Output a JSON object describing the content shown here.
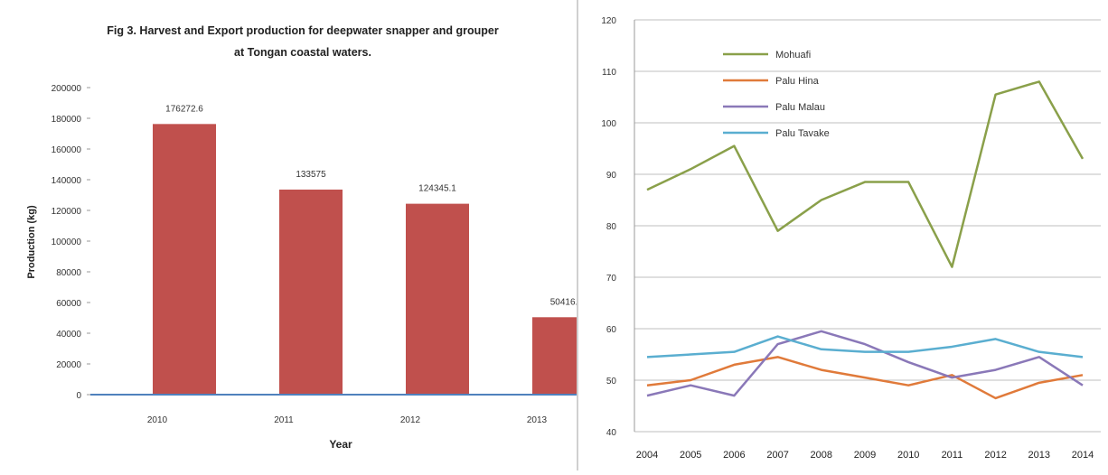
{
  "chart_data": [
    {
      "type": "bar",
      "title": "Fig 3.  Harvest and Export production for deepwater snapper and grouper",
      "subtitle": "at Tongan coastal waters.",
      "xlabel": "Year",
      "ylabel": "Production (kg)",
      "categories": [
        "2010",
        "2011",
        "2012",
        "2013"
      ],
      "values": [
        176272.6,
        133575,
        124345.1,
        50416
      ],
      "data_labels": [
        "176272.6",
        "133575",
        "124345.1",
        "50416."
      ],
      "ylim": [
        0,
        200000
      ],
      "yticks": [
        0,
        20000,
        40000,
        60000,
        80000,
        100000,
        120000,
        140000,
        160000,
        180000,
        200000
      ],
      "ytick_labels": [
        "0",
        "20000",
        "40000",
        "60000",
        "80000",
        "100000",
        "120000",
        "140000",
        "160000",
        "180000",
        "200000"
      ],
      "grid": false,
      "colors": {
        "bar": "#c0504d",
        "axis": "#4f81bd"
      }
    },
    {
      "type": "line",
      "x": [
        "2004",
        "2005",
        "2006",
        "2007",
        "2008",
        "2009",
        "2010",
        "2011",
        "2012",
        "2013",
        "2014"
      ],
      "ylim": [
        40,
        120
      ],
      "yticks": [
        40,
        50,
        60,
        70,
        80,
        90,
        100,
        110,
        120
      ],
      "ytick_labels": [
        "40",
        "50",
        "60",
        "70",
        "80",
        "90",
        "100",
        "110",
        "120"
      ],
      "grid": true,
      "legend": "top-left",
      "series": [
        {
          "name": "Mohuafi",
          "color": "#8aa04a",
          "values": [
            87,
            91,
            95.5,
            79,
            85,
            88.5,
            88.5,
            72,
            105.5,
            108,
            93
          ]
        },
        {
          "name": "Palu Hina",
          "color": "#e07a3a",
          "values": [
            49,
            50,
            53,
            54.5,
            52,
            50.5,
            49,
            51,
            46.5,
            49.5,
            51
          ]
        },
        {
          "name": "Palu Malau",
          "color": "#8a78b8",
          "values": [
            47,
            49,
            47,
            57,
            59.5,
            57,
            53.5,
            50.5,
            52,
            54.5,
            49
          ]
        },
        {
          "name": "Palu Tavake",
          "color": "#5aaed0",
          "values": [
            54.5,
            55,
            55.5,
            58.5,
            56,
            55.5,
            55.5,
            56.5,
            58,
            55.5,
            54.5
          ]
        }
      ]
    }
  ]
}
